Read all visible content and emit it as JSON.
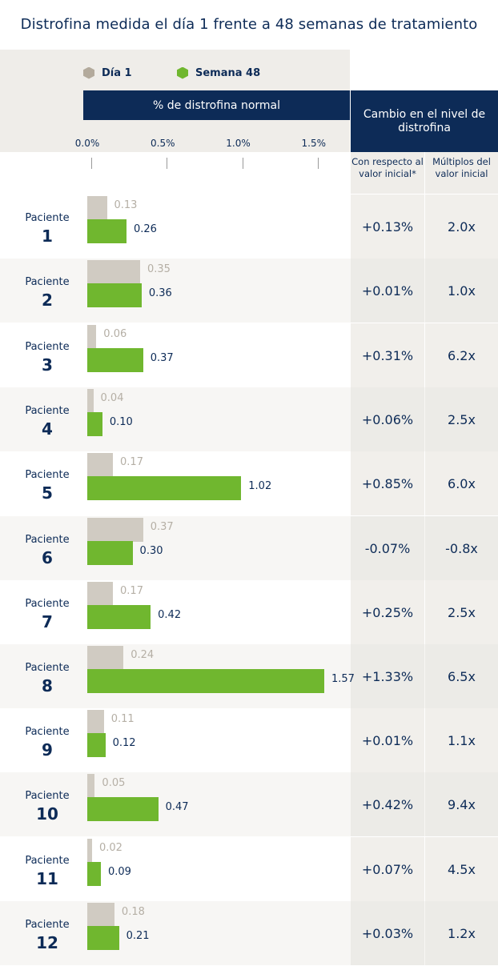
{
  "title": "Distrofina medida el día 1 frente a 48 semanas de tratamiento",
  "legend": [
    {
      "label": "Día 1",
      "color": "#b3aa9c"
    },
    {
      "label": "Semana 48",
      "color": "#70b72f"
    }
  ],
  "axis_title": "% de distrofina normal",
  "cambio_header": "Cambio en el nivel de distrofina",
  "sub_headers": [
    "Con respecto al valor inicial*",
    "Múltiplos del valor inicial"
  ],
  "patient_word": "Paciente",
  "chart_data": {
    "type": "bar",
    "orientation": "horizontal",
    "title": "Distrofina medida el día 1 frente a 48 semanas de tratamiento",
    "xlabel": "% de distrofina normal",
    "xlim": [
      0,
      1.75
    ],
    "ticks": [
      "0.0%",
      "0.5%",
      "1.0%",
      "1.5%"
    ],
    "tick_values": [
      0,
      0.5,
      1.0,
      1.5
    ],
    "categories": [
      "1",
      "2",
      "3",
      "4",
      "5",
      "6",
      "7",
      "8",
      "9",
      "10",
      "11",
      "12"
    ],
    "series": [
      {
        "name": "Día 1",
        "values": [
          0.13,
          0.35,
          0.06,
          0.04,
          0.17,
          0.37,
          0.17,
          0.24,
          0.11,
          0.05,
          0.02,
          0.18
        ],
        "labels": [
          "0.13",
          "0.35",
          "0.06",
          "0.04",
          "0.17",
          "0.37",
          "0.17",
          "0.24",
          "0.11",
          "0.05",
          "0.02",
          "0.18"
        ]
      },
      {
        "name": "Semana 48",
        "values": [
          0.26,
          0.36,
          0.37,
          0.1,
          1.02,
          0.3,
          0.42,
          1.57,
          0.12,
          0.47,
          0.09,
          0.21
        ],
        "labels": [
          "0.26",
          "0.36",
          "0.37",
          "0.10",
          "1.02",
          "0.30",
          "0.42",
          "1.57",
          "0.12",
          "0.47",
          "0.09",
          "0.21"
        ]
      }
    ],
    "table": {
      "change_vs_baseline": [
        "+0.13%",
        "+0.01%",
        "+0.31%",
        "+0.06%",
        "+0.85%",
        "-0.07%",
        "+0.25%",
        "+1.33%",
        "+0.01%",
        "+0.42%",
        "+0.07%",
        "+0.03%"
      ],
      "fold_change": [
        "2.0x",
        "1.0x",
        "6.2x",
        "2.5x",
        "6.0x",
        "-0.8x",
        "2.5x",
        "6.5x",
        "1.1x",
        "9.4x",
        "4.5x",
        "1.2x"
      ]
    }
  }
}
